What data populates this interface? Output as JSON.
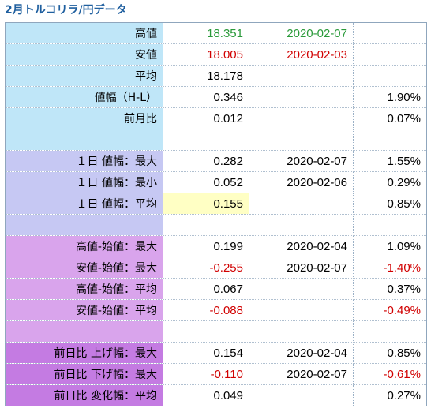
{
  "title": "2月トルコリラ/円データ",
  "colors": {
    "group1": "#bfe6f8",
    "group2": "#c6c8f3",
    "group3": "#d9a4ec",
    "group4": "#c47be2",
    "highlight": "#ffffc4",
    "up": "#2a9a3a",
    "down": "#d10000"
  },
  "rows": [
    {
      "label": "高値",
      "value": "18.351",
      "date": "2020-02-07",
      "pct": "",
      "group": "g1",
      "valueColor": "green",
      "dateColor": "green",
      "pctColor": ""
    },
    {
      "label": "安値",
      "value": "18.005",
      "date": "2020-02-03",
      "pct": "",
      "group": "g1",
      "valueColor": "red",
      "dateColor": "red",
      "pctColor": ""
    },
    {
      "label": "平均",
      "value": "18.178",
      "date": "",
      "pct": "",
      "group": "g1",
      "valueColor": "",
      "dateColor": "",
      "pctColor": ""
    },
    {
      "label": "値幅（H-L）",
      "value": "0.346",
      "date": "",
      "pct": "1.90%",
      "group": "g1",
      "valueColor": "",
      "dateColor": "",
      "pctColor": ""
    },
    {
      "label": "前月比",
      "value": "0.012",
      "date": "",
      "pct": "0.07%",
      "group": "g1",
      "valueColor": "",
      "dateColor": "",
      "pctColor": ""
    },
    {
      "label": "",
      "value": "",
      "date": "",
      "pct": "",
      "group": "g1",
      "valueColor": "",
      "dateColor": "",
      "pctColor": ""
    },
    {
      "label": "１日 値幅：最大",
      "value": "0.282",
      "date": "2020-02-07",
      "pct": "1.55%",
      "group": "g2",
      "valueColor": "",
      "dateColor": "",
      "pctColor": ""
    },
    {
      "label": "１日 値幅：最小",
      "value": "0.052",
      "date": "2020-02-06",
      "pct": "0.29%",
      "group": "g2",
      "valueColor": "",
      "dateColor": "",
      "pctColor": ""
    },
    {
      "label": "１日 値幅：平均",
      "value": "0.155",
      "date": "",
      "pct": "0.85%",
      "group": "g2",
      "valueColor": "",
      "dateColor": "",
      "pctColor": "",
      "highlight": true
    },
    {
      "label": "",
      "value": "",
      "date": "",
      "pct": "",
      "group": "g2",
      "valueColor": "",
      "dateColor": "",
      "pctColor": ""
    },
    {
      "label": "高値-始値：最大",
      "value": "0.199",
      "date": "2020-02-04",
      "pct": "1.09%",
      "group": "g3",
      "valueColor": "",
      "dateColor": "",
      "pctColor": ""
    },
    {
      "label": "安値-始値：最大",
      "value": "-0.255",
      "date": "2020-02-07",
      "pct": "-1.40%",
      "group": "g3",
      "valueColor": "red",
      "dateColor": "",
      "pctColor": "red"
    },
    {
      "label": "高値-始値：平均",
      "value": "0.067",
      "date": "",
      "pct": "0.37%",
      "group": "g3",
      "valueColor": "",
      "dateColor": "",
      "pctColor": ""
    },
    {
      "label": "安値-始値：平均",
      "value": "-0.088",
      "date": "",
      "pct": "-0.49%",
      "group": "g3",
      "valueColor": "red",
      "dateColor": "",
      "pctColor": "red"
    },
    {
      "label": "",
      "value": "",
      "date": "",
      "pct": "",
      "group": "g3",
      "valueColor": "",
      "dateColor": "",
      "pctColor": ""
    },
    {
      "label": "前日比 上げ幅：最大",
      "value": "0.154",
      "date": "2020-02-04",
      "pct": "0.85%",
      "group": "g4",
      "valueColor": "",
      "dateColor": "",
      "pctColor": ""
    },
    {
      "label": "前日比 下げ幅：最大",
      "value": "-0.110",
      "date": "2020-02-07",
      "pct": "-0.61%",
      "group": "g4",
      "valueColor": "red",
      "dateColor": "",
      "pctColor": "red"
    },
    {
      "label": "前日比 変化幅：平均",
      "value": "0.049",
      "date": "",
      "pct": "0.27%",
      "group": "g4",
      "valueColor": "",
      "dateColor": "",
      "pctColor": ""
    }
  ]
}
